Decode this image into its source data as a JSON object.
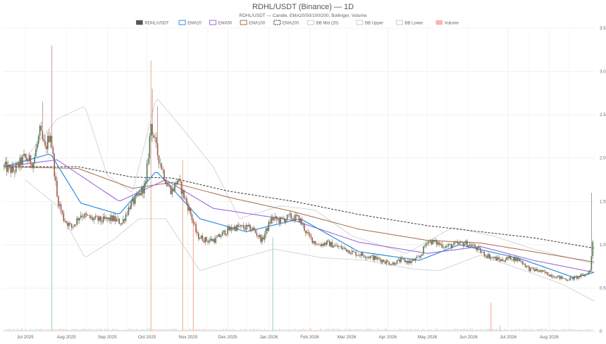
{
  "chart_data": {
    "type": "candlestick",
    "title": "RDHL/USDT (Binance) — 1D",
    "subtitle": "RDHL/USDT — Candle, EMA20/50/100/200, Bollinger, Volume",
    "legend_position": "top-center",
    "grid": true,
    "x_ticks": [
      "Jul 2025",
      "Aug 2025",
      "Sep 2025",
      "Oct 2025",
      "Nov 2025",
      "Dec 2025",
      "Jan 2026",
      "Feb 2026",
      "Mar 2026",
      "Apr 2026",
      "May 2026",
      "Jun 2026",
      "Jul 2026",
      "Aug 2026"
    ],
    "y_ticks": [
      "0",
      "0.5",
      "1.0",
      "1.5",
      "2.0",
      "2.5",
      "3.0",
      "3.5"
    ],
    "y_range": [
      0,
      3.5
    ],
    "x_range": [
      "2025-06-14",
      "2026-09-05"
    ],
    "legend": [
      {
        "label": "RDHL/USDT",
        "color": "#555555",
        "style": "fill"
      },
      {
        "label": "EMA20",
        "color": "#2d8fe0",
        "style": "line"
      },
      {
        "label": "EMA50",
        "color": "#9b6bdc",
        "style": "line"
      },
      {
        "label": "EMA100",
        "color": "#a9694b",
        "style": "line"
      },
      {
        "label": "EMA200",
        "color": "#333333",
        "style": "dash"
      },
      {
        "label": "BB Mid (20)",
        "color": "#cccccc",
        "style": "line"
      },
      {
        "label": "BB Upper",
        "color": "#cccccc",
        "style": "line"
      },
      {
        "label": "BB Lower",
        "color": "#cccccc",
        "style": "line"
      },
      {
        "label": "Volume",
        "color": "#f4b8a8",
        "style": "fill"
      }
    ],
    "colors": {
      "up": "#4f7a55",
      "down": "#9c5c4c",
      "ema20": "#2d8fe0",
      "ema50": "#9b6bdc",
      "ema100": "#a9694b",
      "ema200": "#333333",
      "bb": "#cccccc",
      "vol_up": "#a5dcc6",
      "vol_down": "#f4b8a8"
    },
    "price_path": [
      {
        "date": "2025-06-15",
        "close": 1.9
      },
      {
        "date": "2025-06-22",
        "close": 1.85
      },
      {
        "date": "2025-06-30",
        "close": 2.0
      },
      {
        "date": "2025-07-07",
        "close": 1.95
      },
      {
        "date": "2025-07-12",
        "close": 2.3
      },
      {
        "date": "2025-07-16",
        "close": 2.1
      },
      {
        "date": "2025-07-20",
        "close": 2.3
      },
      {
        "date": "2025-07-25",
        "close": 1.55
      },
      {
        "date": "2025-07-30",
        "close": 1.3
      },
      {
        "date": "2025-08-05",
        "close": 1.2
      },
      {
        "date": "2025-08-12",
        "close": 1.35
      },
      {
        "date": "2025-08-20",
        "close": 1.3
      },
      {
        "date": "2025-08-28",
        "close": 1.28
      },
      {
        "date": "2025-09-05",
        "close": 1.3
      },
      {
        "date": "2025-09-12",
        "close": 1.25
      },
      {
        "date": "2025-09-18",
        "close": 1.45
      },
      {
        "date": "2025-09-24",
        "close": 1.55
      },
      {
        "date": "2025-09-30",
        "close": 1.7
      },
      {
        "date": "2025-10-04",
        "close": 2.4
      },
      {
        "date": "2025-10-08",
        "close": 2.1
      },
      {
        "date": "2025-10-12",
        "close": 1.9
      },
      {
        "date": "2025-10-16",
        "close": 1.7
      },
      {
        "date": "2025-10-20",
        "close": 1.62
      },
      {
        "date": "2025-10-24",
        "close": 1.75
      },
      {
        "date": "2025-10-28",
        "close": 1.6
      },
      {
        "date": "2025-11-02",
        "close": 1.4
      },
      {
        "date": "2025-11-08",
        "close": 1.1
      },
      {
        "date": "2025-11-15",
        "close": 1.05
      },
      {
        "date": "2025-11-22",
        "close": 1.06
      },
      {
        "date": "2025-11-29",
        "close": 1.15
      },
      {
        "date": "2025-12-06",
        "close": 1.2
      },
      {
        "date": "2025-12-13",
        "close": 1.2
      },
      {
        "date": "2025-12-20",
        "close": 1.18
      },
      {
        "date": "2025-12-27",
        "close": 1.05
      },
      {
        "date": "2026-01-03",
        "close": 1.3
      },
      {
        "date": "2026-01-10",
        "close": 1.28
      },
      {
        "date": "2026-01-17",
        "close": 1.32
      },
      {
        "date": "2026-01-24",
        "close": 1.3
      },
      {
        "date": "2026-01-31",
        "close": 1.1
      },
      {
        "date": "2026-02-07",
        "close": 1.0
      },
      {
        "date": "2026-02-14",
        "close": 1.02
      },
      {
        "date": "2026-02-21",
        "close": 0.98
      },
      {
        "date": "2026-02-28",
        "close": 0.95
      },
      {
        "date": "2026-03-07",
        "close": 0.9
      },
      {
        "date": "2026-03-14",
        "close": 0.88
      },
      {
        "date": "2026-03-21",
        "close": 0.85
      },
      {
        "date": "2026-03-28",
        "close": 0.82
      },
      {
        "date": "2026-04-04",
        "close": 0.78
      },
      {
        "date": "2026-04-11",
        "close": 0.82
      },
      {
        "date": "2026-04-18",
        "close": 0.8
      },
      {
        "date": "2026-04-25",
        "close": 0.85
      },
      {
        "date": "2026-05-01",
        "close": 1.05
      },
      {
        "date": "2026-05-08",
        "close": 1.02
      },
      {
        "date": "2026-05-15",
        "close": 0.98
      },
      {
        "date": "2026-05-22",
        "close": 1.0
      },
      {
        "date": "2026-05-29",
        "close": 1.02
      },
      {
        "date": "2026-06-05",
        "close": 0.98
      },
      {
        "date": "2026-06-12",
        "close": 0.9
      },
      {
        "date": "2026-06-19",
        "close": 0.85
      },
      {
        "date": "2026-06-26",
        "close": 0.82
      },
      {
        "date": "2026-07-03",
        "close": 0.85
      },
      {
        "date": "2026-07-10",
        "close": 0.82
      },
      {
        "date": "2026-07-17",
        "close": 0.72
      },
      {
        "date": "2026-07-24",
        "close": 0.7
      },
      {
        "date": "2026-07-31",
        "close": 0.66
      },
      {
        "date": "2026-08-07",
        "close": 0.63
      },
      {
        "date": "2026-08-14",
        "close": 0.6
      },
      {
        "date": "2026-08-21",
        "close": 0.62
      },
      {
        "date": "2026-08-28",
        "close": 0.65
      },
      {
        "date": "2026-09-01",
        "close": 0.7
      },
      {
        "date": "2026-09-03",
        "close": 1.05
      }
    ],
    "spikes": [
      {
        "date": "2025-07-14",
        "high": 2.65
      },
      {
        "date": "2025-07-21",
        "high": 3.3
      },
      {
        "date": "2025-10-05",
        "high": 2.8
      },
      {
        "date": "2025-10-09",
        "high": 2.6
      },
      {
        "date": "2026-09-02",
        "high": 1.6
      }
    ],
    "volume_spikes": [
      {
        "date": "2025-07-21",
        "vol": 0.45,
        "up": true
      },
      {
        "date": "2025-10-04",
        "vol": 0.95,
        "up": false
      },
      {
        "date": "2025-10-28",
        "vol": 0.6,
        "up": false
      },
      {
        "date": "2025-11-05",
        "vol": 0.4,
        "up": false
      },
      {
        "date": "2026-01-04",
        "vol": 0.33,
        "up": true
      },
      {
        "date": "2026-06-18",
        "vol": 0.1,
        "up": false
      },
      {
        "date": "2026-06-25",
        "vol": 0.02,
        "up": true
      }
    ],
    "ema_snapshots": {
      "ema20": [
        {
          "date": "2025-06-15",
          "v": 1.9
        },
        {
          "date": "2025-07-20",
          "v": 2.05
        },
        {
          "date": "2025-08-12",
          "v": 1.48
        },
        {
          "date": "2025-09-10",
          "v": 1.35
        },
        {
          "date": "2025-10-08",
          "v": 1.85
        },
        {
          "date": "2025-11-10",
          "v": 1.3
        },
        {
          "date": "2025-12-15",
          "v": 1.15
        },
        {
          "date": "2026-01-25",
          "v": 1.3
        },
        {
          "date": "2026-03-10",
          "v": 0.92
        },
        {
          "date": "2026-04-25",
          "v": 0.82
        },
        {
          "date": "2026-05-25",
          "v": 1.0
        },
        {
          "date": "2026-07-10",
          "v": 0.84
        },
        {
          "date": "2026-08-20",
          "v": 0.62
        },
        {
          "date": "2026-09-04",
          "v": 0.68
        }
      ],
      "ema50": [
        {
          "date": "2025-06-15",
          "v": 1.9
        },
        {
          "date": "2025-07-25",
          "v": 1.98
        },
        {
          "date": "2025-09-10",
          "v": 1.5
        },
        {
          "date": "2025-10-15",
          "v": 1.75
        },
        {
          "date": "2025-11-20",
          "v": 1.42
        },
        {
          "date": "2026-01-20",
          "v": 1.28
        },
        {
          "date": "2026-03-10",
          "v": 1.03
        },
        {
          "date": "2026-05-01",
          "v": 0.9
        },
        {
          "date": "2026-06-10",
          "v": 0.98
        },
        {
          "date": "2026-07-20",
          "v": 0.82
        },
        {
          "date": "2026-09-04",
          "v": 0.68
        }
      ],
      "ema100": [
        {
          "date": "2025-06-15",
          "v": 1.9
        },
        {
          "date": "2025-08-10",
          "v": 1.88
        },
        {
          "date": "2025-09-20",
          "v": 1.65
        },
        {
          "date": "2025-10-20",
          "v": 1.72
        },
        {
          "date": "2025-12-01",
          "v": 1.55
        },
        {
          "date": "2026-01-20",
          "v": 1.38
        },
        {
          "date": "2026-03-10",
          "v": 1.18
        },
        {
          "date": "2026-05-01",
          "v": 1.05
        },
        {
          "date": "2026-06-10",
          "v": 1.02
        },
        {
          "date": "2026-07-20",
          "v": 0.92
        },
        {
          "date": "2026-09-04",
          "v": 0.8
        }
      ],
      "ema200": [
        {
          "date": "2025-06-15",
          "v": 1.9
        },
        {
          "date": "2025-08-10",
          "v": 1.9
        },
        {
          "date": "2025-09-20",
          "v": 1.78
        },
        {
          "date": "2025-10-20",
          "v": 1.77
        },
        {
          "date": "2025-12-01",
          "v": 1.62
        },
        {
          "date": "2026-01-20",
          "v": 1.5
        },
        {
          "date": "2026-03-10",
          "v": 1.35
        },
        {
          "date": "2026-05-01",
          "v": 1.22
        },
        {
          "date": "2026-06-10",
          "v": 1.15
        },
        {
          "date": "2026-07-20",
          "v": 1.08
        },
        {
          "date": "2026-09-04",
          "v": 0.96
        }
      ]
    },
    "bb_snapshots": {
      "upper": [
        {
          "date": "2025-07-01",
          "v": 2.0
        },
        {
          "date": "2025-07-25",
          "v": 2.45
        },
        {
          "date": "2025-08-15",
          "v": 2.6
        },
        {
          "date": "2025-09-01",
          "v": 1.8
        },
        {
          "date": "2025-09-20",
          "v": 1.6
        },
        {
          "date": "2025-10-08",
          "v": 2.7
        },
        {
          "date": "2025-10-30",
          "v": 2.3
        },
        {
          "date": "2025-11-20",
          "v": 1.9
        },
        {
          "date": "2025-12-10",
          "v": 1.3
        },
        {
          "date": "2026-01-10",
          "v": 1.45
        },
        {
          "date": "2026-02-05",
          "v": 1.4
        },
        {
          "date": "2026-03-05",
          "v": 1.1
        },
        {
          "date": "2026-04-15",
          "v": 0.9
        },
        {
          "date": "2026-05-20",
          "v": 1.2
        },
        {
          "date": "2026-06-20",
          "v": 1.1
        },
        {
          "date": "2026-07-20",
          "v": 0.95
        },
        {
          "date": "2026-09-04",
          "v": 0.78
        }
      ],
      "lower": [
        {
          "date": "2025-07-01",
          "v": 1.75
        },
        {
          "date": "2025-07-25",
          "v": 1.45
        },
        {
          "date": "2025-08-15",
          "v": 0.85
        },
        {
          "date": "2025-09-05",
          "v": 1.05
        },
        {
          "date": "2025-09-25",
          "v": 1.3
        },
        {
          "date": "2025-10-15",
          "v": 1.3
        },
        {
          "date": "2025-11-10",
          "v": 0.7
        },
        {
          "date": "2025-12-05",
          "v": 0.82
        },
        {
          "date": "2026-01-05",
          "v": 0.95
        },
        {
          "date": "2026-02-10",
          "v": 0.85
        },
        {
          "date": "2026-03-15",
          "v": 0.82
        },
        {
          "date": "2026-04-20",
          "v": 0.72
        },
        {
          "date": "2026-05-10",
          "v": 0.7
        },
        {
          "date": "2026-06-10",
          "v": 0.88
        },
        {
          "date": "2026-07-10",
          "v": 0.72
        },
        {
          "date": "2026-08-10",
          "v": 0.55
        },
        {
          "date": "2026-09-04",
          "v": 0.35
        }
      ]
    }
  }
}
